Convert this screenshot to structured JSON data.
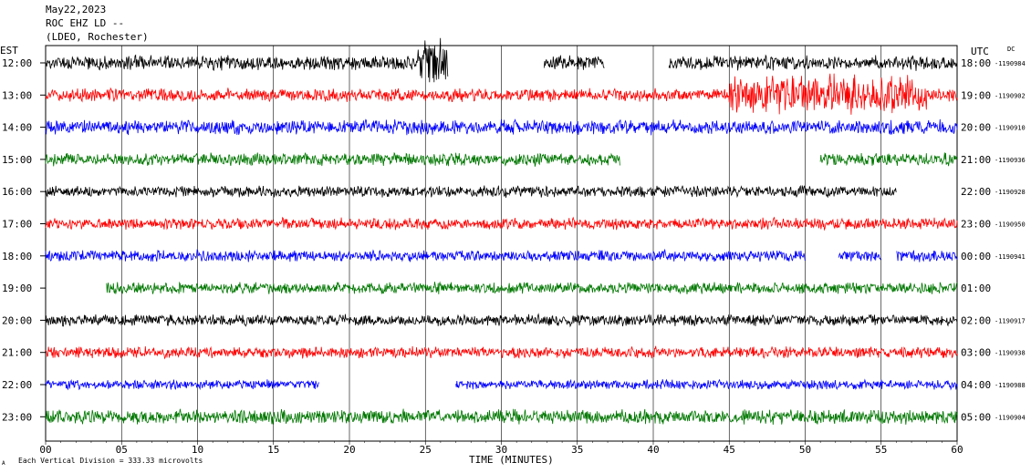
{
  "header": {
    "line1": "May22,2023",
    "line2": "ROC EHZ LD --",
    "line3": "(LDEO, Rochester)"
  },
  "left_timezone": "EST",
  "right_timezone": "UTC",
  "right_corner_tag": "DC",
  "footer_note": "Each Vertical Division =  333.33 microvolts",
  "footer_glyph": "A",
  "colors": {
    "black": "#000000",
    "red": "#ff0000",
    "blue": "#0000ff",
    "green": "#007700",
    "grid": "#000000"
  },
  "chart_data": {
    "type": "line",
    "title": "",
    "xlabel": "TIME (MINUTES)",
    "ylabel": "",
    "xlim": [
      0,
      60
    ],
    "x_tick_labels": [
      "00",
      "05",
      "10",
      "15",
      "20",
      "25",
      "30",
      "35",
      "40",
      "45",
      "50",
      "55",
      "60"
    ],
    "grid": true,
    "rows": [
      {
        "local": "12:00",
        "utc": "18:00",
        "code": "-1190984",
        "color": "black",
        "start": 0,
        "end": 60,
        "gaps": [
          [
            26.5,
            32.8
          ],
          [
            36.8,
            41
          ]
        ],
        "amp": 9,
        "burst": [
          [
            24.5,
            27,
            3.5
          ]
        ]
      },
      {
        "local": "13:00",
        "utc": "19:00",
        "code": "-1190902",
        "color": "red",
        "start": 0,
        "end": 60,
        "gaps": [],
        "amp": 8,
        "burst": [
          [
            45,
            58,
            3
          ]
        ]
      },
      {
        "local": "14:00",
        "utc": "20:00",
        "code": "-1190910",
        "color": "blue",
        "start": 0,
        "end": 60,
        "gaps": [],
        "amp": 9,
        "burst": []
      },
      {
        "local": "15:00",
        "utc": "21:00",
        "code": "-1190936",
        "color": "green",
        "start": 0,
        "end": 60,
        "gaps": [
          [
            37.8,
            51
          ]
        ],
        "amp": 8,
        "burst": []
      },
      {
        "local": "16:00",
        "utc": "22:00",
        "code": "-1190928",
        "color": "black",
        "start": 0,
        "end": 56,
        "gaps": [],
        "amp": 7,
        "burst": []
      },
      {
        "local": "17:00",
        "utc": "23:00",
        "code": "-1190950",
        "color": "red",
        "start": 0,
        "end": 60,
        "gaps": [],
        "amp": 7,
        "burst": []
      },
      {
        "local": "18:00",
        "utc": "00:00",
        "code": "-1190941",
        "color": "blue",
        "start": 0,
        "end": 60,
        "gaps": [
          [
            50,
            52.2
          ],
          [
            55,
            56
          ]
        ],
        "amp": 7,
        "burst": []
      },
      {
        "local": "19:00",
        "utc": "01:00",
        "code": "",
        "color": "green",
        "start": 4,
        "end": 60,
        "gaps": [],
        "amp": 7,
        "burst": []
      },
      {
        "local": "20:00",
        "utc": "02:00",
        "code": "-1190917",
        "color": "black",
        "start": 0,
        "end": 60,
        "gaps": [],
        "amp": 7,
        "burst": []
      },
      {
        "local": "21:00",
        "utc": "03:00",
        "code": "-1190938",
        "color": "red",
        "start": 0,
        "end": 60,
        "gaps": [],
        "amp": 7,
        "burst": []
      },
      {
        "local": "22:00",
        "utc": "04:00",
        "code": "-1190988",
        "color": "blue",
        "start": 0,
        "end": 60,
        "gaps": [
          [
            18,
            27
          ]
        ],
        "amp": 6,
        "burst": []
      },
      {
        "local": "23:00",
        "utc": "05:00",
        "code": "-1190904",
        "color": "green",
        "start": 0,
        "end": 60,
        "gaps": [],
        "amp": 9,
        "burst": []
      }
    ]
  }
}
